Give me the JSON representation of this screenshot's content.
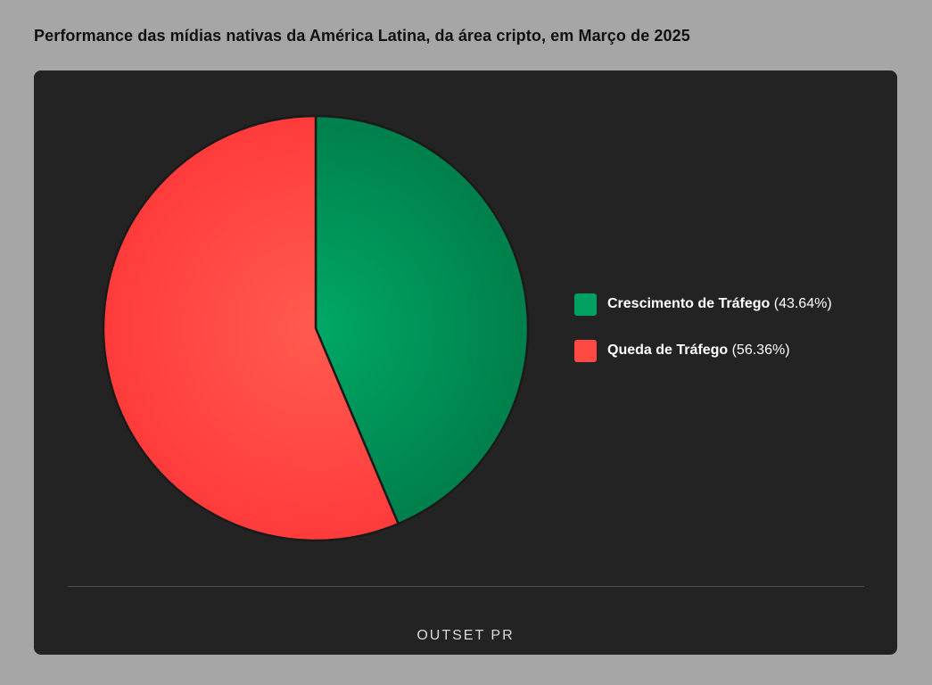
{
  "title": "Performance das mídias nativas da América Latina, da área cripto, em Março de 2025",
  "brand": "OUTSET PR",
  "chart_data": {
    "type": "pie",
    "title": "Performance das mídias nativas da América Latina, da área cripto, em Março de 2025",
    "slices": [
      {
        "label": "Crescimento de Tráfego",
        "value": 43.64,
        "value_text": "(43.64%)",
        "color": "#008a52"
      },
      {
        "label": "Queda de Tráfego",
        "value": 56.36,
        "value_text": "(56.36%)",
        "color": "#ff4040"
      }
    ],
    "legend_position": "right"
  }
}
